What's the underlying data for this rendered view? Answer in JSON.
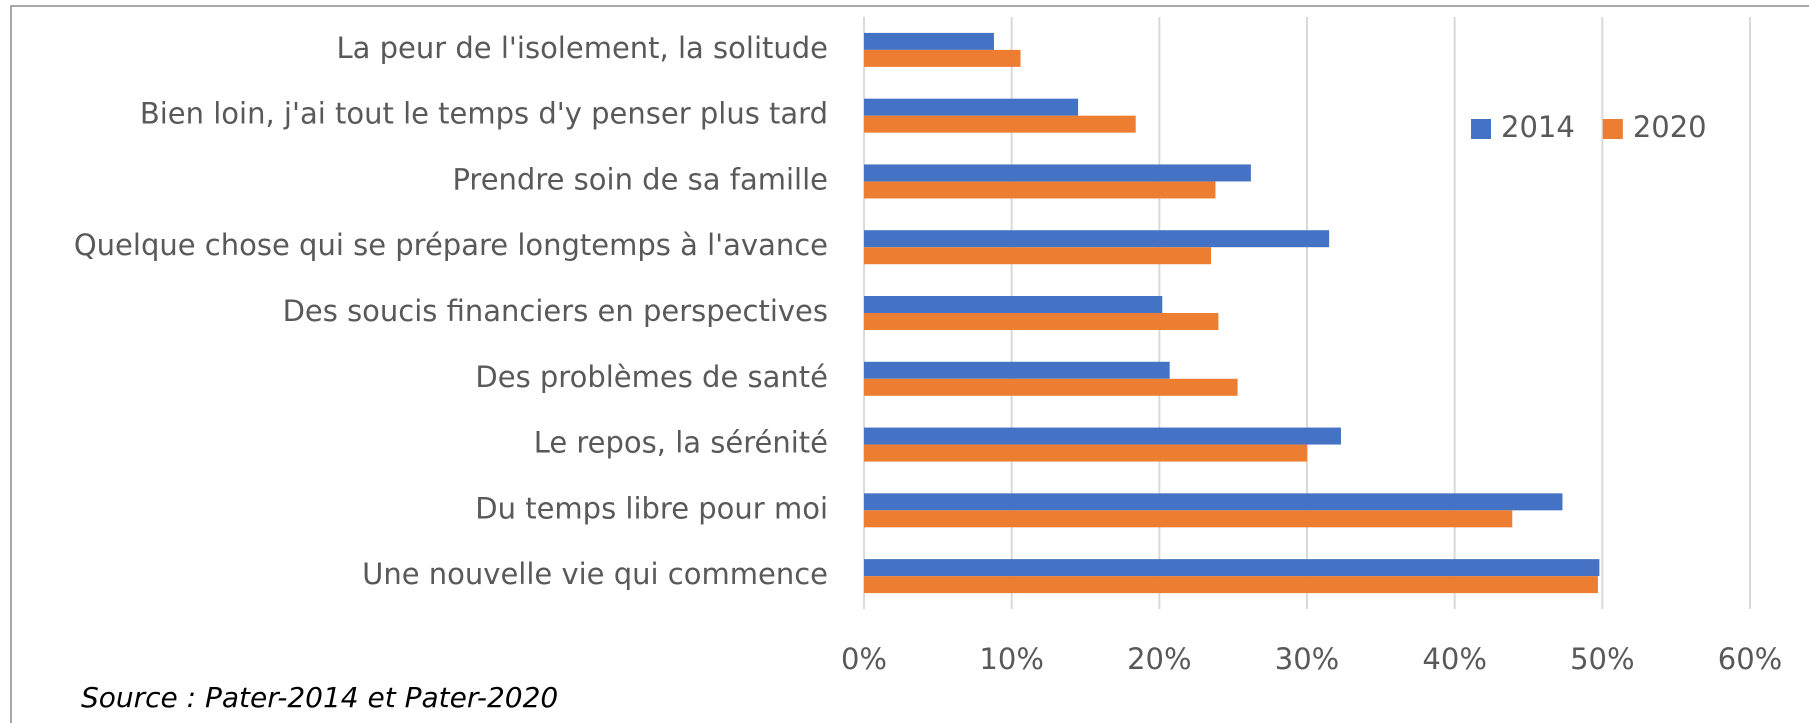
{
  "chart_data": {
    "type": "bar",
    "orientation": "horizontal",
    "categories": [
      "La peur de l'isolement, la solitude",
      "Bien loin, j'ai tout le temps d'y penser plus tard",
      "Prendre soin de sa famille",
      "Quelque chose qui se prépare longtemps à l'avance",
      "Des soucis financiers en perspectives",
      "Des problèmes de santé",
      "Le repos, la sérénité",
      "Du temps libre pour moi",
      "Une nouvelle vie qui commence"
    ],
    "series": [
      {
        "name": "2014",
        "color": "#4472c4",
        "values": [
          8.8,
          14.5,
          26.2,
          31.5,
          20.2,
          20.7,
          32.3,
          47.3,
          49.8
        ]
      },
      {
        "name": "2020",
        "color": "#ed7d31",
        "values": [
          10.6,
          18.4,
          23.8,
          23.5,
          24.0,
          25.3,
          30.0,
          43.9,
          49.7
        ]
      }
    ],
    "xlim": [
      0,
      60
    ],
    "xticks": [
      {
        "value": 0,
        "label": "0%"
      },
      {
        "value": 10,
        "label": "10%"
      },
      {
        "value": 20,
        "label": "20%"
      },
      {
        "value": 30,
        "label": "30%"
      },
      {
        "value": 40,
        "label": "40%"
      },
      {
        "value": 50,
        "label": "50%"
      },
      {
        "value": 60,
        "label": "60%"
      }
    ],
    "grid": true,
    "legend": "upper right",
    "source": "Source : Pater-2014 et Pater-2020"
  }
}
